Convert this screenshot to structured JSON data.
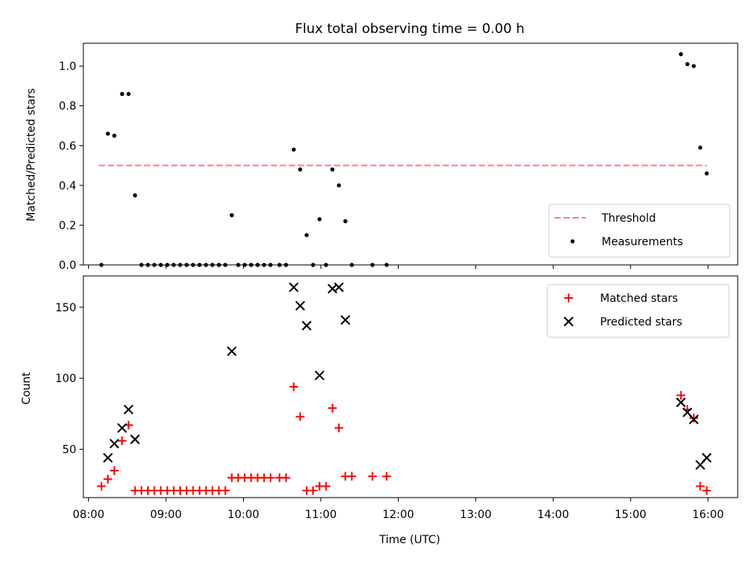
{
  "chart_data": [
    {
      "type": "scatter",
      "title": "Flux total observing time = 0.00 h",
      "xlabel": "",
      "ylabel": "Matched/Predicted stars",
      "ylim": [
        0,
        1.115
      ],
      "yticks": [
        "0.0",
        "0.2",
        "0.4",
        "0.6",
        "0.8",
        "1.0"
      ],
      "xlim": [
        "07:56",
        "16:23"
      ],
      "grid": false,
      "legend_position": "lower-right",
      "series": [
        {
          "name": "Threshold",
          "style": "dashed-line",
          "color": "#ff7f7f",
          "points": [
            {
              "x": "08:08",
              "y": 0.5
            },
            {
              "x": "15:59",
              "y": 0.5
            }
          ]
        },
        {
          "name": "Measurements",
          "style": "dot",
          "color": "#000000",
          "points": [
            {
              "x": "08:10",
              "y": 0.0
            },
            {
              "x": "08:15",
              "y": 0.66
            },
            {
              "x": "08:20",
              "y": 0.65
            },
            {
              "x": "08:26",
              "y": 0.86
            },
            {
              "x": "08:31",
              "y": 0.86
            },
            {
              "x": "08:36",
              "y": 0.35
            },
            {
              "x": "08:41",
              "y": 0.0
            },
            {
              "x": "08:46",
              "y": 0.0
            },
            {
              "x": "08:51",
              "y": 0.0
            },
            {
              "x": "08:56",
              "y": 0.0
            },
            {
              "x": "09:01",
              "y": 0.0
            },
            {
              "x": "09:06",
              "y": 0.0
            },
            {
              "x": "09:11",
              "y": 0.0
            },
            {
              "x": "09:16",
              "y": 0.0
            },
            {
              "x": "09:21",
              "y": 0.0
            },
            {
              "x": "09:26",
              "y": 0.0
            },
            {
              "x": "09:31",
              "y": 0.0
            },
            {
              "x": "09:36",
              "y": 0.0
            },
            {
              "x": "09:41",
              "y": 0.0
            },
            {
              "x": "09:46",
              "y": 0.0
            },
            {
              "x": "09:51",
              "y": 0.25
            },
            {
              "x": "09:56",
              "y": 0.0
            },
            {
              "x": "10:01",
              "y": 0.0
            },
            {
              "x": "10:06",
              "y": 0.0
            },
            {
              "x": "10:11",
              "y": 0.0
            },
            {
              "x": "10:16",
              "y": 0.0
            },
            {
              "x": "10:21",
              "y": 0.0
            },
            {
              "x": "10:28",
              "y": 0.0
            },
            {
              "x": "10:33",
              "y": 0.0
            },
            {
              "x": "10:39",
              "y": 0.58
            },
            {
              "x": "10:44",
              "y": 0.48
            },
            {
              "x": "10:49",
              "y": 0.15
            },
            {
              "x": "10:54",
              "y": 0.0
            },
            {
              "x": "10:59",
              "y": 0.23
            },
            {
              "x": "11:04",
              "y": 0.0
            },
            {
              "x": "11:09",
              "y": 0.48
            },
            {
              "x": "11:14",
              "y": 0.4
            },
            {
              "x": "11:19",
              "y": 0.22
            },
            {
              "x": "11:24",
              "y": 0.0
            },
            {
              "x": "11:40",
              "y": 0.0
            },
            {
              "x": "11:51",
              "y": 0.0
            },
            {
              "x": "15:39",
              "y": 1.06
            },
            {
              "x": "15:44",
              "y": 1.01
            },
            {
              "x": "15:49",
              "y": 1.0
            },
            {
              "x": "15:54",
              "y": 0.59
            },
            {
              "x": "15:59",
              "y": 0.46
            }
          ]
        }
      ]
    },
    {
      "type": "scatter",
      "title": "",
      "xlabel": "Time (UTC)",
      "ylabel": "Count",
      "ylim": [
        16,
        172
      ],
      "yticks": [
        "50",
        "100",
        "150"
      ],
      "xticks": [
        "08:00",
        "09:00",
        "10:00",
        "11:00",
        "12:00",
        "13:00",
        "14:00",
        "15:00",
        "16:00"
      ],
      "xlim": [
        "07:56",
        "16:23"
      ],
      "grid": false,
      "legend_position": "upper-right",
      "series": [
        {
          "name": "Matched stars",
          "style": "plus",
          "color": "#ff0000",
          "points": [
            {
              "x": "08:10",
              "y": 24
            },
            {
              "x": "08:15",
              "y": 29
            },
            {
              "x": "08:20",
              "y": 35
            },
            {
              "x": "08:26",
              "y": 56
            },
            {
              "x": "08:31",
              "y": 67
            },
            {
              "x": "08:36",
              "y": 21
            },
            {
              "x": "08:41",
              "y": 21
            },
            {
              "x": "08:46",
              "y": 21
            },
            {
              "x": "08:51",
              "y": 21
            },
            {
              "x": "08:56",
              "y": 21
            },
            {
              "x": "09:01",
              "y": 21
            },
            {
              "x": "09:06",
              "y": 21
            },
            {
              "x": "09:11",
              "y": 21
            },
            {
              "x": "09:16",
              "y": 21
            },
            {
              "x": "09:21",
              "y": 21
            },
            {
              "x": "09:26",
              "y": 21
            },
            {
              "x": "09:31",
              "y": 21
            },
            {
              "x": "09:36",
              "y": 21
            },
            {
              "x": "09:41",
              "y": 21
            },
            {
              "x": "09:46",
              "y": 21
            },
            {
              "x": "09:51",
              "y": 30
            },
            {
              "x": "09:56",
              "y": 30
            },
            {
              "x": "10:01",
              "y": 30
            },
            {
              "x": "10:06",
              "y": 30
            },
            {
              "x": "10:11",
              "y": 30
            },
            {
              "x": "10:16",
              "y": 30
            },
            {
              "x": "10:21",
              "y": 30
            },
            {
              "x": "10:28",
              "y": 30
            },
            {
              "x": "10:33",
              "y": 30
            },
            {
              "x": "10:39",
              "y": 94
            },
            {
              "x": "10:44",
              "y": 73
            },
            {
              "x": "10:49",
              "y": 21
            },
            {
              "x": "10:54",
              "y": 21
            },
            {
              "x": "10:59",
              "y": 24
            },
            {
              "x": "11:04",
              "y": 24
            },
            {
              "x": "11:09",
              "y": 79
            },
            {
              "x": "11:14",
              "y": 65
            },
            {
              "x": "11:19",
              "y": 31
            },
            {
              "x": "11:24",
              "y": 31
            },
            {
              "x": "11:40",
              "y": 31
            },
            {
              "x": "11:51",
              "y": 31
            },
            {
              "x": "15:39",
              "y": 88
            },
            {
              "x": "15:44",
              "y": 78
            },
            {
              "x": "15:49",
              "y": 72
            },
            {
              "x": "15:54",
              "y": 24
            },
            {
              "x": "15:59",
              "y": 21
            }
          ]
        },
        {
          "name": "Predicted stars",
          "style": "x",
          "color": "#000000",
          "points": [
            {
              "x": "08:15",
              "y": 44
            },
            {
              "x": "08:20",
              "y": 54
            },
            {
              "x": "08:26",
              "y": 65
            },
            {
              "x": "08:31",
              "y": 78
            },
            {
              "x": "08:36",
              "y": 57
            },
            {
              "x": "09:51",
              "y": 119
            },
            {
              "x": "10:39",
              "y": 164
            },
            {
              "x": "10:44",
              "y": 151
            },
            {
              "x": "10:49",
              "y": 137
            },
            {
              "x": "10:59",
              "y": 102
            },
            {
              "x": "11:09",
              "y": 163
            },
            {
              "x": "11:14",
              "y": 164
            },
            {
              "x": "11:19",
              "y": 141
            },
            {
              "x": "15:39",
              "y": 83
            },
            {
              "x": "15:44",
              "y": 76
            },
            {
              "x": "15:49",
              "y": 71
            },
            {
              "x": "15:54",
              "y": 39
            },
            {
              "x": "15:59",
              "y": 44
            }
          ]
        }
      ]
    }
  ]
}
